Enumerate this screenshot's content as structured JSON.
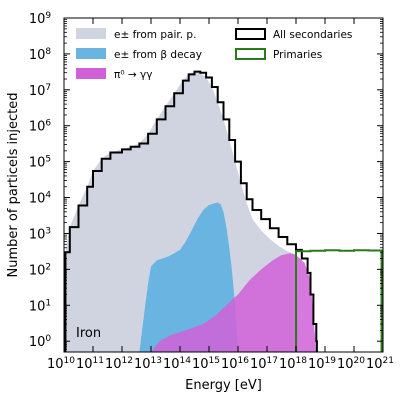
{
  "chart_data": {
    "type": "area",
    "xlabel": "Energy [eV]",
    "ylabel": "Number of particels injected",
    "x_scale": "log",
    "y_scale": "log",
    "xlim": [
      10000000000.0,
      1e+21
    ],
    "ylim": [
      0.5,
      1000000000.0
    ],
    "x_tick_labels": [
      {
        "base": "10",
        "exp": "10"
      },
      {
        "base": "10",
        "exp": "11"
      },
      {
        "base": "10",
        "exp": "12"
      },
      {
        "base": "10",
        "exp": "13"
      },
      {
        "base": "10",
        "exp": "14"
      },
      {
        "base": "10",
        "exp": "15"
      },
      {
        "base": "10",
        "exp": "16"
      },
      {
        "base": "10",
        "exp": "17"
      },
      {
        "base": "10",
        "exp": "18"
      },
      {
        "base": "10",
        "exp": "19"
      },
      {
        "base": "10",
        "exp": "20"
      },
      {
        "base": "10",
        "exp": "21"
      }
    ],
    "y_tick_labels": [
      {
        "base": "10",
        "exp": "0"
      },
      {
        "base": "10",
        "exp": "1"
      },
      {
        "base": "10",
        "exp": "2"
      },
      {
        "base": "10",
        "exp": "3"
      },
      {
        "base": "10",
        "exp": "4"
      },
      {
        "base": "10",
        "exp": "5"
      },
      {
        "base": "10",
        "exp": "6"
      },
      {
        "base": "10",
        "exp": "7"
      },
      {
        "base": "10",
        "exp": "8"
      },
      {
        "base": "10",
        "exp": "9"
      }
    ],
    "annotation": "Iron",
    "legend": {
      "left": [
        {
          "label": "e± from pair. p.",
          "color": "#d0d4e0"
        },
        {
          "label": "e± from β decay",
          "color": "#6ab4e2"
        },
        {
          "label": "π⁰ → γγ",
          "color": "#d060d8"
        }
      ],
      "right": [
        {
          "label": "All secondaries",
          "color": "#000000"
        },
        {
          "label": "Primaries",
          "color": "#2a7a1a"
        }
      ]
    },
    "series": [
      {
        "name": "e± from pair. p.",
        "style": "filled",
        "color": "#d0d4e0",
        "points": [
          [
            10.0,
            0.5
          ],
          [
            10.05,
            300
          ],
          [
            10.2,
            1500
          ],
          [
            10.5,
            6000
          ],
          [
            10.8,
            20000
          ],
          [
            11.0,
            55000
          ],
          [
            11.3,
            120000
          ],
          [
            11.6,
            180000
          ],
          [
            12.0,
            220000
          ],
          [
            12.3,
            260000
          ],
          [
            12.6,
            320000
          ],
          [
            12.9,
            600000
          ],
          [
            13.2,
            1500000
          ],
          [
            13.5,
            3500000
          ],
          [
            13.8,
            8000000
          ],
          [
            14.1,
            18000000
          ],
          [
            14.3,
            27000000
          ],
          [
            14.5,
            32000000
          ],
          [
            14.7,
            30000000
          ],
          [
            14.9,
            22000000
          ],
          [
            15.1,
            12000000
          ],
          [
            15.3,
            4500000
          ],
          [
            15.5,
            1500000
          ],
          [
            15.7,
            400000
          ],
          [
            15.9,
            100000
          ],
          [
            16.1,
            25000
          ],
          [
            16.3,
            7000
          ],
          [
            16.5,
            2500
          ],
          [
            16.8,
            1200
          ],
          [
            17.1,
            700
          ],
          [
            17.4,
            450
          ],
          [
            17.7,
            320
          ],
          [
            18.0,
            260
          ],
          [
            18.1,
            0.5
          ]
        ]
      },
      {
        "name": "e± from β decay",
        "style": "filled",
        "color": "#6ab4e2",
        "points": [
          [
            12.6,
            0.5
          ],
          [
            12.8,
            10
          ],
          [
            12.9,
            40
          ],
          [
            13.0,
            120
          ],
          [
            13.2,
            180
          ],
          [
            13.4,
            200
          ],
          [
            13.6,
            230
          ],
          [
            13.8,
            280
          ],
          [
            14.0,
            350
          ],
          [
            14.2,
            600
          ],
          [
            14.4,
            1200
          ],
          [
            14.6,
            2500
          ],
          [
            14.8,
            4500
          ],
          [
            15.0,
            6200
          ],
          [
            15.2,
            7000
          ],
          [
            15.3,
            7200
          ],
          [
            15.4,
            6500
          ],
          [
            15.5,
            4000
          ],
          [
            15.6,
            1500
          ],
          [
            15.7,
            400
          ],
          [
            15.8,
            80
          ],
          [
            15.9,
            10
          ],
          [
            16.0,
            0.5
          ]
        ]
      },
      {
        "name": "π⁰ → γγ",
        "style": "filled",
        "color": "#d060d8",
        "points": [
          [
            13.0,
            0.5
          ],
          [
            13.3,
            1
          ],
          [
            13.7,
            1.5
          ],
          [
            14.2,
            2
          ],
          [
            14.8,
            3
          ],
          [
            15.2,
            5
          ],
          [
            15.6,
            10
          ],
          [
            16.0,
            20
          ],
          [
            16.4,
            50
          ],
          [
            16.8,
            100
          ],
          [
            17.2,
            180
          ],
          [
            17.5,
            250
          ],
          [
            17.8,
            280
          ],
          [
            18.0,
            250
          ],
          [
            18.3,
            150
          ],
          [
            18.5,
            50
          ],
          [
            18.6,
            5
          ],
          [
            18.7,
            0.5
          ]
        ]
      },
      {
        "name": "All secondaries",
        "style": "step",
        "color": "#000000",
        "points": [
          [
            10.0,
            0.5
          ],
          [
            10.05,
            300
          ],
          [
            10.2,
            1500
          ],
          [
            10.5,
            6000
          ],
          [
            10.8,
            20000
          ],
          [
            11.0,
            55000
          ],
          [
            11.3,
            120000
          ],
          [
            11.6,
            180000
          ],
          [
            12.0,
            220000
          ],
          [
            12.3,
            260000
          ],
          [
            12.6,
            320000
          ],
          [
            12.9,
            600000
          ],
          [
            13.2,
            1500000
          ],
          [
            13.5,
            3500000
          ],
          [
            13.8,
            8000000
          ],
          [
            14.1,
            18000000
          ],
          [
            14.3,
            27000000
          ],
          [
            14.5,
            32000000
          ],
          [
            14.7,
            30000000
          ],
          [
            14.9,
            22000000
          ],
          [
            15.1,
            12000000
          ],
          [
            15.3,
            4500000
          ],
          [
            15.5,
            1500000
          ],
          [
            15.7,
            400000
          ],
          [
            15.9,
            100000
          ],
          [
            16.1,
            25000
          ],
          [
            16.3,
            9000
          ],
          [
            16.5,
            4500
          ],
          [
            16.8,
            2500
          ],
          [
            17.1,
            1400
          ],
          [
            17.4,
            800
          ],
          [
            17.7,
            500
          ],
          [
            18.0,
            350
          ],
          [
            18.2,
            200
          ],
          [
            18.4,
            80
          ],
          [
            18.5,
            20
          ],
          [
            18.6,
            3
          ],
          [
            18.7,
            1
          ],
          [
            18.72,
            0.5
          ]
        ]
      },
      {
        "name": "Primaries",
        "style": "step",
        "color": "#2a7a1a",
        "points": [
          [
            18.0,
            0.5
          ],
          [
            18.0,
            320
          ],
          [
            18.5,
            330
          ],
          [
            19.0,
            340
          ],
          [
            19.5,
            330
          ],
          [
            20.0,
            340
          ],
          [
            20.5,
            335
          ],
          [
            20.95,
            330
          ],
          [
            20.95,
            0.5
          ]
        ]
      }
    ]
  }
}
